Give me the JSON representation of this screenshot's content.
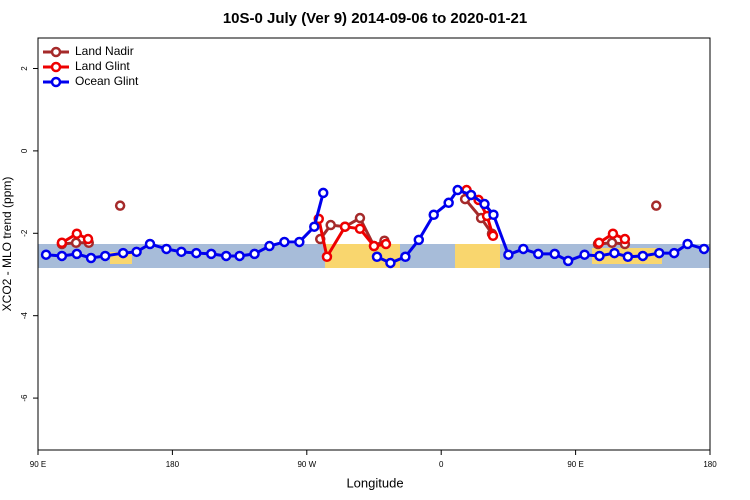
{
  "chart_data": {
    "type": "line",
    "title": "10S-0 July (Ver 9)   2014-09-06 to 2020-01-21",
    "x_label": "Longitude",
    "y_label": "XCO2 - MLO trend (ppm)",
    "xlim": [
      90,
      540
    ],
    "ylim": [
      -7.26,
      2.74
    ],
    "xticks": [
      {
        "value": 90,
        "label": "90 E"
      },
      180,
      {
        "value": 270,
        "label": "90 W"
      },
      {
        "value": 360,
        "label": "0"
      },
      {
        "value": 450,
        "label": "90 E"
      },
      {
        "value": 540,
        "label": "180"
      }
    ],
    "yticks": [
      -6,
      -4,
      -2,
      0,
      2
    ],
    "grid": false,
    "legend": "top-left",
    "series": [
      {
        "name": "Land Nadir",
        "color": "#a52a2a",
        "x": [
          106,
          115.5,
          124,
          null,
          145,
          null,
          279,
          286,
          295.6,
          305.6,
          315,
          322,
          null,
          376,
          386.7,
          394,
          null,
          465,
          474.4,
          483,
          null,
          504
        ],
        "values": [
          -2.26,
          -2.23,
          -2.23,
          null,
          -1.33,
          null,
          -2.14,
          -1.8,
          -1.84,
          -1.63,
          -2.31,
          -2.18,
          null,
          -1.17,
          -1.63,
          -2.01,
          null,
          -2.26,
          -2.23,
          -2.26,
          null,
          -1.33
        ]
      },
      {
        "name": "Land Glint",
        "color": "#ee0000",
        "x": [
          106,
          116,
          123.5,
          null,
          278,
          283.5,
          295.6,
          305.6,
          315,
          323,
          null,
          377,
          385,
          390.7,
          394.7,
          null,
          465.7,
          475,
          483
        ],
        "values": [
          -2.23,
          -2.01,
          -2.14,
          null,
          -1.65,
          -2.57,
          -1.84,
          -1.89,
          -2.31,
          -2.26,
          null,
          -0.95,
          -1.19,
          -1.58,
          -2.06,
          null,
          -2.23,
          -2.01,
          -2.14
        ]
      },
      {
        "name": "Ocean Glint",
        "color": "#0000ee",
        "x": [
          95.4,
          106,
          116,
          125.5,
          135,
          147,
          156,
          165,
          176,
          186,
          196,
          206,
          216,
          225,
          235,
          245,
          255,
          265,
          275,
          281,
          null,
          317,
          326,
          336,
          345,
          355,
          365,
          371,
          380,
          389,
          395,
          405,
          415,
          425,
          436,
          445,
          456,
          466,
          476,
          485,
          495,
          506,
          516,
          525,
          536
        ],
        "values": [
          -2.52,
          -2.55,
          -2.5,
          -2.6,
          -2.55,
          -2.48,
          -2.45,
          -2.26,
          -2.38,
          -2.45,
          -2.48,
          -2.5,
          -2.55,
          -2.55,
          -2.5,
          -2.31,
          -2.21,
          -2.21,
          -1.84,
          -1.02,
          null,
          -2.57,
          -2.72,
          -2.57,
          -2.16,
          -1.55,
          -1.26,
          -0.95,
          -1.07,
          -1.29,
          -1.55,
          -2.52,
          -2.38,
          -2.5,
          -2.5,
          -2.67,
          -2.52,
          -2.55,
          -2.48,
          -2.57,
          -2.55,
          -2.48,
          -2.48,
          -2.26,
          -2.38
        ]
      }
    ]
  }
}
